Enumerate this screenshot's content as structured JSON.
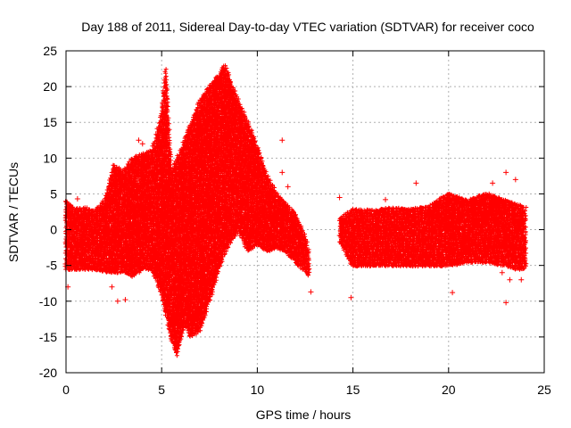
{
  "chart_data": {
    "type": "scatter",
    "title": "Day 188 of 2011, Sidereal Day-to-day VTEC variation (SDTVAR) for receiver coco",
    "xlabel": "GPS time / hours",
    "ylabel": "SDTVAR / TECUs",
    "xlim": [
      0,
      25
    ],
    "ylim": [
      -20,
      25
    ],
    "xticks": [
      0,
      5,
      10,
      15,
      20,
      25
    ],
    "yticks": [
      -20,
      -15,
      -10,
      -5,
      0,
      5,
      10,
      15,
      20,
      25
    ],
    "xtick_labels": [
      "0",
      "5",
      "10",
      "15",
      "20",
      "25"
    ],
    "ytick_labels": [
      "-20",
      "-15",
      "-10",
      "-5",
      "0",
      "5",
      "10",
      "15",
      "20",
      "25"
    ],
    "grid": true,
    "marker": "+",
    "color": "#ff0000",
    "series": [
      {
        "name": "SDTVAR",
        "envelope_upper": [
          [
            0.0,
            4.0
          ],
          [
            0.5,
            2.8
          ],
          [
            1.0,
            3.0
          ],
          [
            1.5,
            2.5
          ],
          [
            2.0,
            4.0
          ],
          [
            2.5,
            9.0
          ],
          [
            3.0,
            8.0
          ],
          [
            3.5,
            10.0
          ],
          [
            4.0,
            10.5
          ],
          [
            4.5,
            11.0
          ],
          [
            5.0,
            16.0
          ],
          [
            5.2,
            22.5
          ],
          [
            5.5,
            8.0
          ],
          [
            6.0,
            11.0
          ],
          [
            6.5,
            14.5
          ],
          [
            7.0,
            18.0
          ],
          [
            7.5,
            20.0
          ],
          [
            8.0,
            21.5
          ],
          [
            8.3,
            23.0
          ],
          [
            8.7,
            20.0
          ],
          [
            9.0,
            18.0
          ],
          [
            9.5,
            15.0
          ],
          [
            10.0,
            11.5
          ],
          [
            10.5,
            7.5
          ],
          [
            11.0,
            5.0
          ],
          [
            11.5,
            3.5
          ],
          [
            12.0,
            2.0
          ],
          [
            12.5,
            -1.0
          ],
          [
            12.7,
            -3.5
          ],
          [
            14.3,
            1.5
          ],
          [
            15.0,
            2.8
          ],
          [
            16.0,
            2.6
          ],
          [
            17.0,
            3.0
          ],
          [
            18.0,
            2.8
          ],
          [
            19.0,
            3.2
          ],
          [
            20.0,
            5.0
          ],
          [
            21.0,
            4.0
          ],
          [
            22.0,
            5.0
          ],
          [
            23.0,
            4.0
          ],
          [
            23.5,
            3.5
          ],
          [
            24.0,
            3.0
          ]
        ],
        "envelope_lower": [
          [
            0.0,
            -5.5
          ],
          [
            0.5,
            -5.5
          ],
          [
            1.0,
            -5.5
          ],
          [
            1.5,
            -5.5
          ],
          [
            2.0,
            -5.8
          ],
          [
            2.5,
            -6.0
          ],
          [
            3.0,
            -5.8
          ],
          [
            3.5,
            -6.5
          ],
          [
            4.0,
            -5.5
          ],
          [
            4.5,
            -5.5
          ],
          [
            5.0,
            -9.0
          ],
          [
            5.5,
            -15.0
          ],
          [
            5.8,
            -17.5
          ],
          [
            6.2,
            -13.0
          ],
          [
            6.5,
            -15.0
          ],
          [
            7.0,
            -14.0
          ],
          [
            7.5,
            -10.0
          ],
          [
            8.0,
            -5.5
          ],
          [
            8.5,
            -2.0
          ],
          [
            9.0,
            0.0
          ],
          [
            9.5,
            -3.0
          ],
          [
            10.0,
            -2.0
          ],
          [
            10.5,
            -3.0
          ],
          [
            11.0,
            -2.5
          ],
          [
            11.5,
            -3.0
          ],
          [
            12.0,
            -4.5
          ],
          [
            12.5,
            -5.8
          ],
          [
            12.7,
            -6.5
          ],
          [
            14.3,
            -1.5
          ],
          [
            15.0,
            -5.0
          ],
          [
            16.0,
            -5.0
          ],
          [
            17.0,
            -5.0
          ],
          [
            18.0,
            -5.0
          ],
          [
            19.0,
            -5.0
          ],
          [
            20.0,
            -5.0
          ],
          [
            21.0,
            -4.5
          ],
          [
            22.0,
            -4.5
          ],
          [
            23.0,
            -5.0
          ],
          [
            23.5,
            -5.5
          ],
          [
            24.0,
            -5.5
          ]
        ],
        "gap_hours": [
          12.8,
          14.2
        ],
        "outliers": [
          [
            0.1,
            -8.0
          ],
          [
            0.6,
            4.3
          ],
          [
            2.7,
            -10.0
          ],
          [
            3.1,
            -9.8
          ],
          [
            2.4,
            -8.0
          ],
          [
            3.8,
            12.5
          ],
          [
            4.0,
            12.0
          ],
          [
            5.0,
            -8.0
          ],
          [
            6.0,
            -9.0
          ],
          [
            11.3,
            12.5
          ],
          [
            11.3,
            8.0
          ],
          [
            11.6,
            6.0
          ],
          [
            12.8,
            -8.7
          ],
          [
            14.3,
            4.5
          ],
          [
            14.4,
            -2.0
          ],
          [
            14.9,
            -9.5
          ],
          [
            16.7,
            4.2
          ],
          [
            18.3,
            6.5
          ],
          [
            20.2,
            -8.8
          ],
          [
            22.3,
            6.5
          ],
          [
            22.8,
            -6.0
          ],
          [
            23.0,
            8.0
          ],
          [
            23.0,
            -10.2
          ],
          [
            23.2,
            -7.0
          ],
          [
            23.5,
            7.0
          ],
          [
            23.8,
            -7.0
          ]
        ]
      }
    ]
  }
}
